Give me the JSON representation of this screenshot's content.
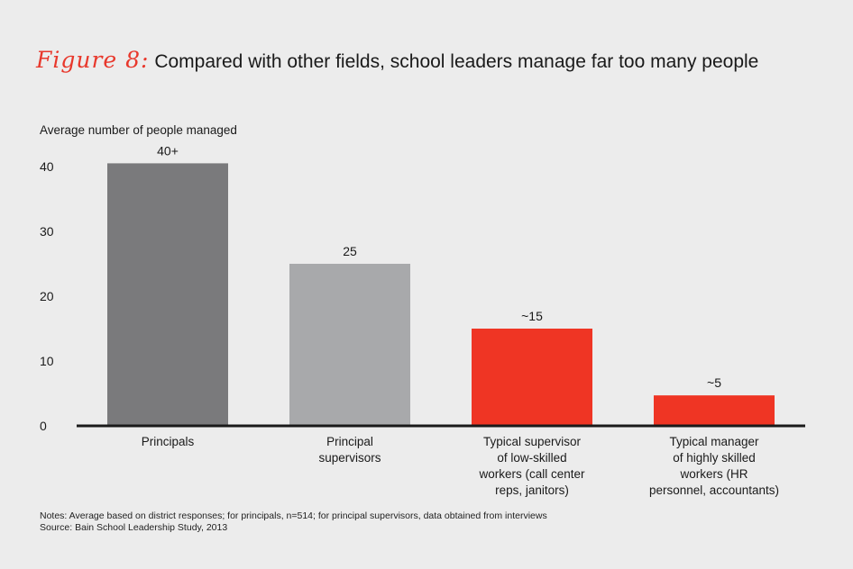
{
  "title": {
    "figure_label": "Figure 8:",
    "text": "Compared with other fields, school leaders manage far too many people"
  },
  "colors": {
    "dark_gray": "#7a7a7c",
    "light_gray": "#a8a9ab",
    "red": "#ef3524",
    "axis": "#1a1a1a",
    "background": "#ececec"
  },
  "chart_data": {
    "type": "bar",
    "ylabel": "Average number of people managed",
    "ylim": [
      0,
      40
    ],
    "yticks": [
      0,
      10,
      20,
      30,
      40
    ],
    "categories": [
      [
        "Principals"
      ],
      [
        "Principal",
        "supervisors"
      ],
      [
        "Typical supervisor",
        "of low-skilled",
        "workers (call center",
        "reps, janitors)"
      ],
      [
        "Typical manager",
        "of highly skilled",
        "workers (HR",
        "personnel, accountants)"
      ]
    ],
    "values": [
      40.5,
      25,
      15,
      4.7
    ],
    "data_labels": [
      "40+",
      "25",
      "~15",
      "~5"
    ],
    "bar_colors": [
      "dark_gray",
      "light_gray",
      "red",
      "red"
    ]
  },
  "notes": {
    "line1": "Notes: Average based on district responses; for principals, n=514; for principal supervisors, data obtained from interviews",
    "line2": "Source: Bain School Leadership Study, 2013"
  }
}
